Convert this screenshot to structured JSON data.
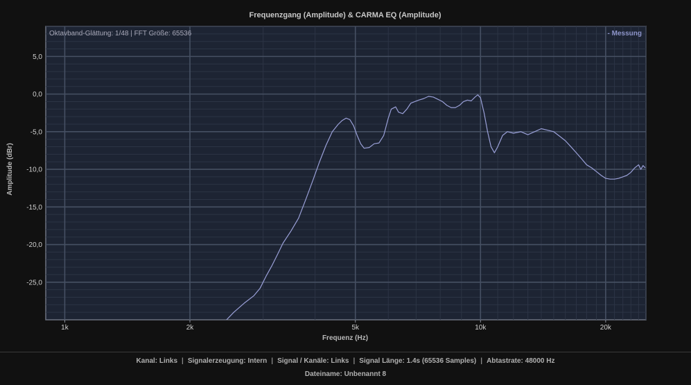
{
  "chart_data": {
    "type": "line",
    "title": "Frequenzgang (Amplitude) & CARMA EQ (Amplitude)",
    "xlabel": "Frequenz (Hz)",
    "ylabel": "Amplitude (dBr)",
    "x_scale": "log",
    "xlim": [
      900,
      25000
    ],
    "ylim": [
      -30,
      9
    ],
    "x_ticks": [
      {
        "value": 1000,
        "label": "1k"
      },
      {
        "value": 2000,
        "label": "2k"
      },
      {
        "value": 5000,
        "label": "5k"
      },
      {
        "value": 10000,
        "label": "10k"
      },
      {
        "value": 20000,
        "label": "20k"
      }
    ],
    "y_ticks": [
      {
        "value": 5,
        "label": "5,0"
      },
      {
        "value": 0,
        "label": "0,0"
      },
      {
        "value": -5,
        "label": "-5,0"
      },
      {
        "value": -10,
        "label": "-10,0"
      },
      {
        "value": -15,
        "label": "-15,0"
      },
      {
        "value": -20,
        "label": "-20,0"
      },
      {
        "value": -25,
        "label": "-25,0"
      }
    ],
    "annotation": "Oktavband-Glättung: 1/48 | FFT Größe: 65536",
    "legend": {
      "position": "top-right",
      "entries": [
        "- Messung"
      ]
    },
    "grid": true,
    "series": [
      {
        "name": "Messung",
        "color": "#9aa0d8",
        "points": [
          [
            2450,
            -30.0
          ],
          [
            2550,
            -29.0
          ],
          [
            2700,
            -27.8
          ],
          [
            2850,
            -26.8
          ],
          [
            2950,
            -25.8
          ],
          [
            3050,
            -24.2
          ],
          [
            3150,
            -22.8
          ],
          [
            3250,
            -21.3
          ],
          [
            3350,
            -19.8
          ],
          [
            3500,
            -18.2
          ],
          [
            3650,
            -16.5
          ],
          [
            3800,
            -14.0
          ],
          [
            3950,
            -11.5
          ],
          [
            4100,
            -9.0
          ],
          [
            4250,
            -6.8
          ],
          [
            4400,
            -5.0
          ],
          [
            4550,
            -4.0
          ],
          [
            4650,
            -3.5
          ],
          [
            4750,
            -3.2
          ],
          [
            4850,
            -3.4
          ],
          [
            4950,
            -4.2
          ],
          [
            5050,
            -5.5
          ],
          [
            5150,
            -6.6
          ],
          [
            5250,
            -7.2
          ],
          [
            5400,
            -7.1
          ],
          [
            5550,
            -6.6
          ],
          [
            5700,
            -6.5
          ],
          [
            5850,
            -5.5
          ],
          [
            6000,
            -3.2
          ],
          [
            6100,
            -2.0
          ],
          [
            6250,
            -1.7
          ],
          [
            6350,
            -2.4
          ],
          [
            6500,
            -2.6
          ],
          [
            6650,
            -2.0
          ],
          [
            6800,
            -1.2
          ],
          [
            6950,
            -1.0
          ],
          [
            7100,
            -0.8
          ],
          [
            7300,
            -0.6
          ],
          [
            7500,
            -0.3
          ],
          [
            7700,
            -0.4
          ],
          [
            7900,
            -0.7
          ],
          [
            8100,
            -1.0
          ],
          [
            8300,
            -1.5
          ],
          [
            8500,
            -1.8
          ],
          [
            8700,
            -1.8
          ],
          [
            8900,
            -1.5
          ],
          [
            9100,
            -1.0
          ],
          [
            9300,
            -0.8
          ],
          [
            9500,
            -0.9
          ],
          [
            9700,
            -0.4
          ],
          [
            9850,
            -0.1
          ],
          [
            10000,
            -0.5
          ],
          [
            10200,
            -2.5
          ],
          [
            10400,
            -5.0
          ],
          [
            10600,
            -7.0
          ],
          [
            10800,
            -7.8
          ],
          [
            11000,
            -7.0
          ],
          [
            11300,
            -5.5
          ],
          [
            11600,
            -5.0
          ],
          [
            12000,
            -5.2
          ],
          [
            12500,
            -5.0
          ],
          [
            13000,
            -5.4
          ],
          [
            13500,
            -5.0
          ],
          [
            14000,
            -4.6
          ],
          [
            14500,
            -4.8
          ],
          [
            15000,
            -5.0
          ],
          [
            15500,
            -5.6
          ],
          [
            16000,
            -6.2
          ],
          [
            16500,
            -7.0
          ],
          [
            17000,
            -7.8
          ],
          [
            17500,
            -8.6
          ],
          [
            18000,
            -9.4
          ],
          [
            18500,
            -9.8
          ],
          [
            19000,
            -10.3
          ],
          [
            19500,
            -10.8
          ],
          [
            20000,
            -11.2
          ],
          [
            20500,
            -11.3
          ],
          [
            21000,
            -11.3
          ],
          [
            21500,
            -11.2
          ],
          [
            22000,
            -11.0
          ],
          [
            22500,
            -10.8
          ],
          [
            23000,
            -10.4
          ],
          [
            23500,
            -9.8
          ],
          [
            24000,
            -9.4
          ],
          [
            24300,
            -10.0
          ],
          [
            24600,
            -9.5
          ],
          [
            24900,
            -9.8
          ]
        ]
      }
    ]
  },
  "footer": {
    "items": [
      {
        "label": "Kanal",
        "value": "Links"
      },
      {
        "label": "Signalerzeugung",
        "value": "Intern"
      },
      {
        "label": "Signal / Kanäle",
        "value": "Links"
      },
      {
        "label": "Signal Länge",
        "value": "1.4s (65536 Samples)"
      },
      {
        "label": "Abtastrate",
        "value": "48000 Hz"
      }
    ],
    "separator": "|",
    "filename_label": "Dateiname",
    "filename_value": "Unbenannt 8"
  },
  "colors": {
    "background": "#111111",
    "plot_background": "#1d2433",
    "grid_major": "#465063",
    "grid_minor": "#2c3445",
    "trace": "#9aa0d8"
  }
}
